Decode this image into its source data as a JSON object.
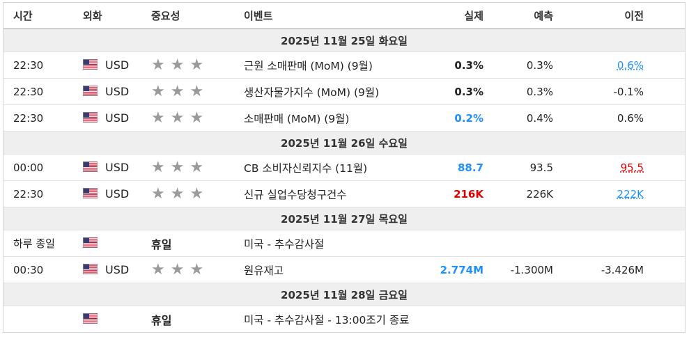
{
  "headers": {
    "time": "시간",
    "currency": "외화",
    "importance": "중요성",
    "event": "이벤트",
    "actual": "실제",
    "forecast": "예측",
    "previous": "이전"
  },
  "days": [
    {
      "label": "2025년 11월 25일 화요일",
      "rows": [
        {
          "time": "22:30",
          "currency": "USD",
          "event": "근원 소매판매 (MoM) (9월)",
          "actual": "0.3%",
          "forecast": "0.3%",
          "previous": "0.6%",
          "actual_style": "bold",
          "previous_style": "ulb"
        },
        {
          "time": "22:30",
          "currency": "USD",
          "event": "생산자물가지수 (MoM) (9월)",
          "actual": "0.3%",
          "forecast": "0.3%",
          "previous": "-0.1%",
          "actual_style": "bold",
          "previous_style": ""
        },
        {
          "time": "22:30",
          "currency": "USD",
          "event": "소매판매 (MoM) (9월)",
          "actual": "0.2%",
          "forecast": "0.4%",
          "previous": "0.6%",
          "actual_style": "bold blue",
          "previous_style": ""
        }
      ]
    },
    {
      "label": "2025년 11월 26일 수요일",
      "rows": [
        {
          "time": "00:00",
          "currency": "USD",
          "event": "CB 소비자신뢰지수 (11월)",
          "actual": "88.7",
          "forecast": "93.5",
          "previous": "95.5",
          "actual_style": "bold blue",
          "previous_style": "ulr"
        },
        {
          "time": "22:30",
          "currency": "USD",
          "event": "신규 실업수당청구건수",
          "actual": "216K",
          "forecast": "226K",
          "previous": "222K",
          "actual_style": "bold red",
          "previous_style": "ulb"
        }
      ]
    },
    {
      "label": "2025년 11월 27일 목요일",
      "rows": [
        {
          "time": "하루 종일",
          "currency": "",
          "holiday": "휴일",
          "event": "미국 - 추수감사절",
          "actual": "",
          "forecast": "",
          "previous": ""
        },
        {
          "time": "00:30",
          "currency": "USD",
          "event": "원유재고",
          "actual": "2.774M",
          "forecast": "-1.300M",
          "previous": "-3.426M",
          "actual_style": "bold blue",
          "previous_style": ""
        }
      ]
    },
    {
      "label": "2025년 11월 28일 금요일",
      "rows": [
        {
          "time": "",
          "currency": "",
          "holiday": "휴일",
          "event": "미국 - 추수감사절 - 13:00조기 종료",
          "actual": "",
          "forecast": "",
          "previous": ""
        }
      ]
    }
  ],
  "importance_icon": "star-icon",
  "flag_icon": "us-flag-icon",
  "colors": {
    "positive": "#1e90ff",
    "negative": "#e00000",
    "star": "#9a9a9a",
    "day_bg": "#efefef"
  }
}
